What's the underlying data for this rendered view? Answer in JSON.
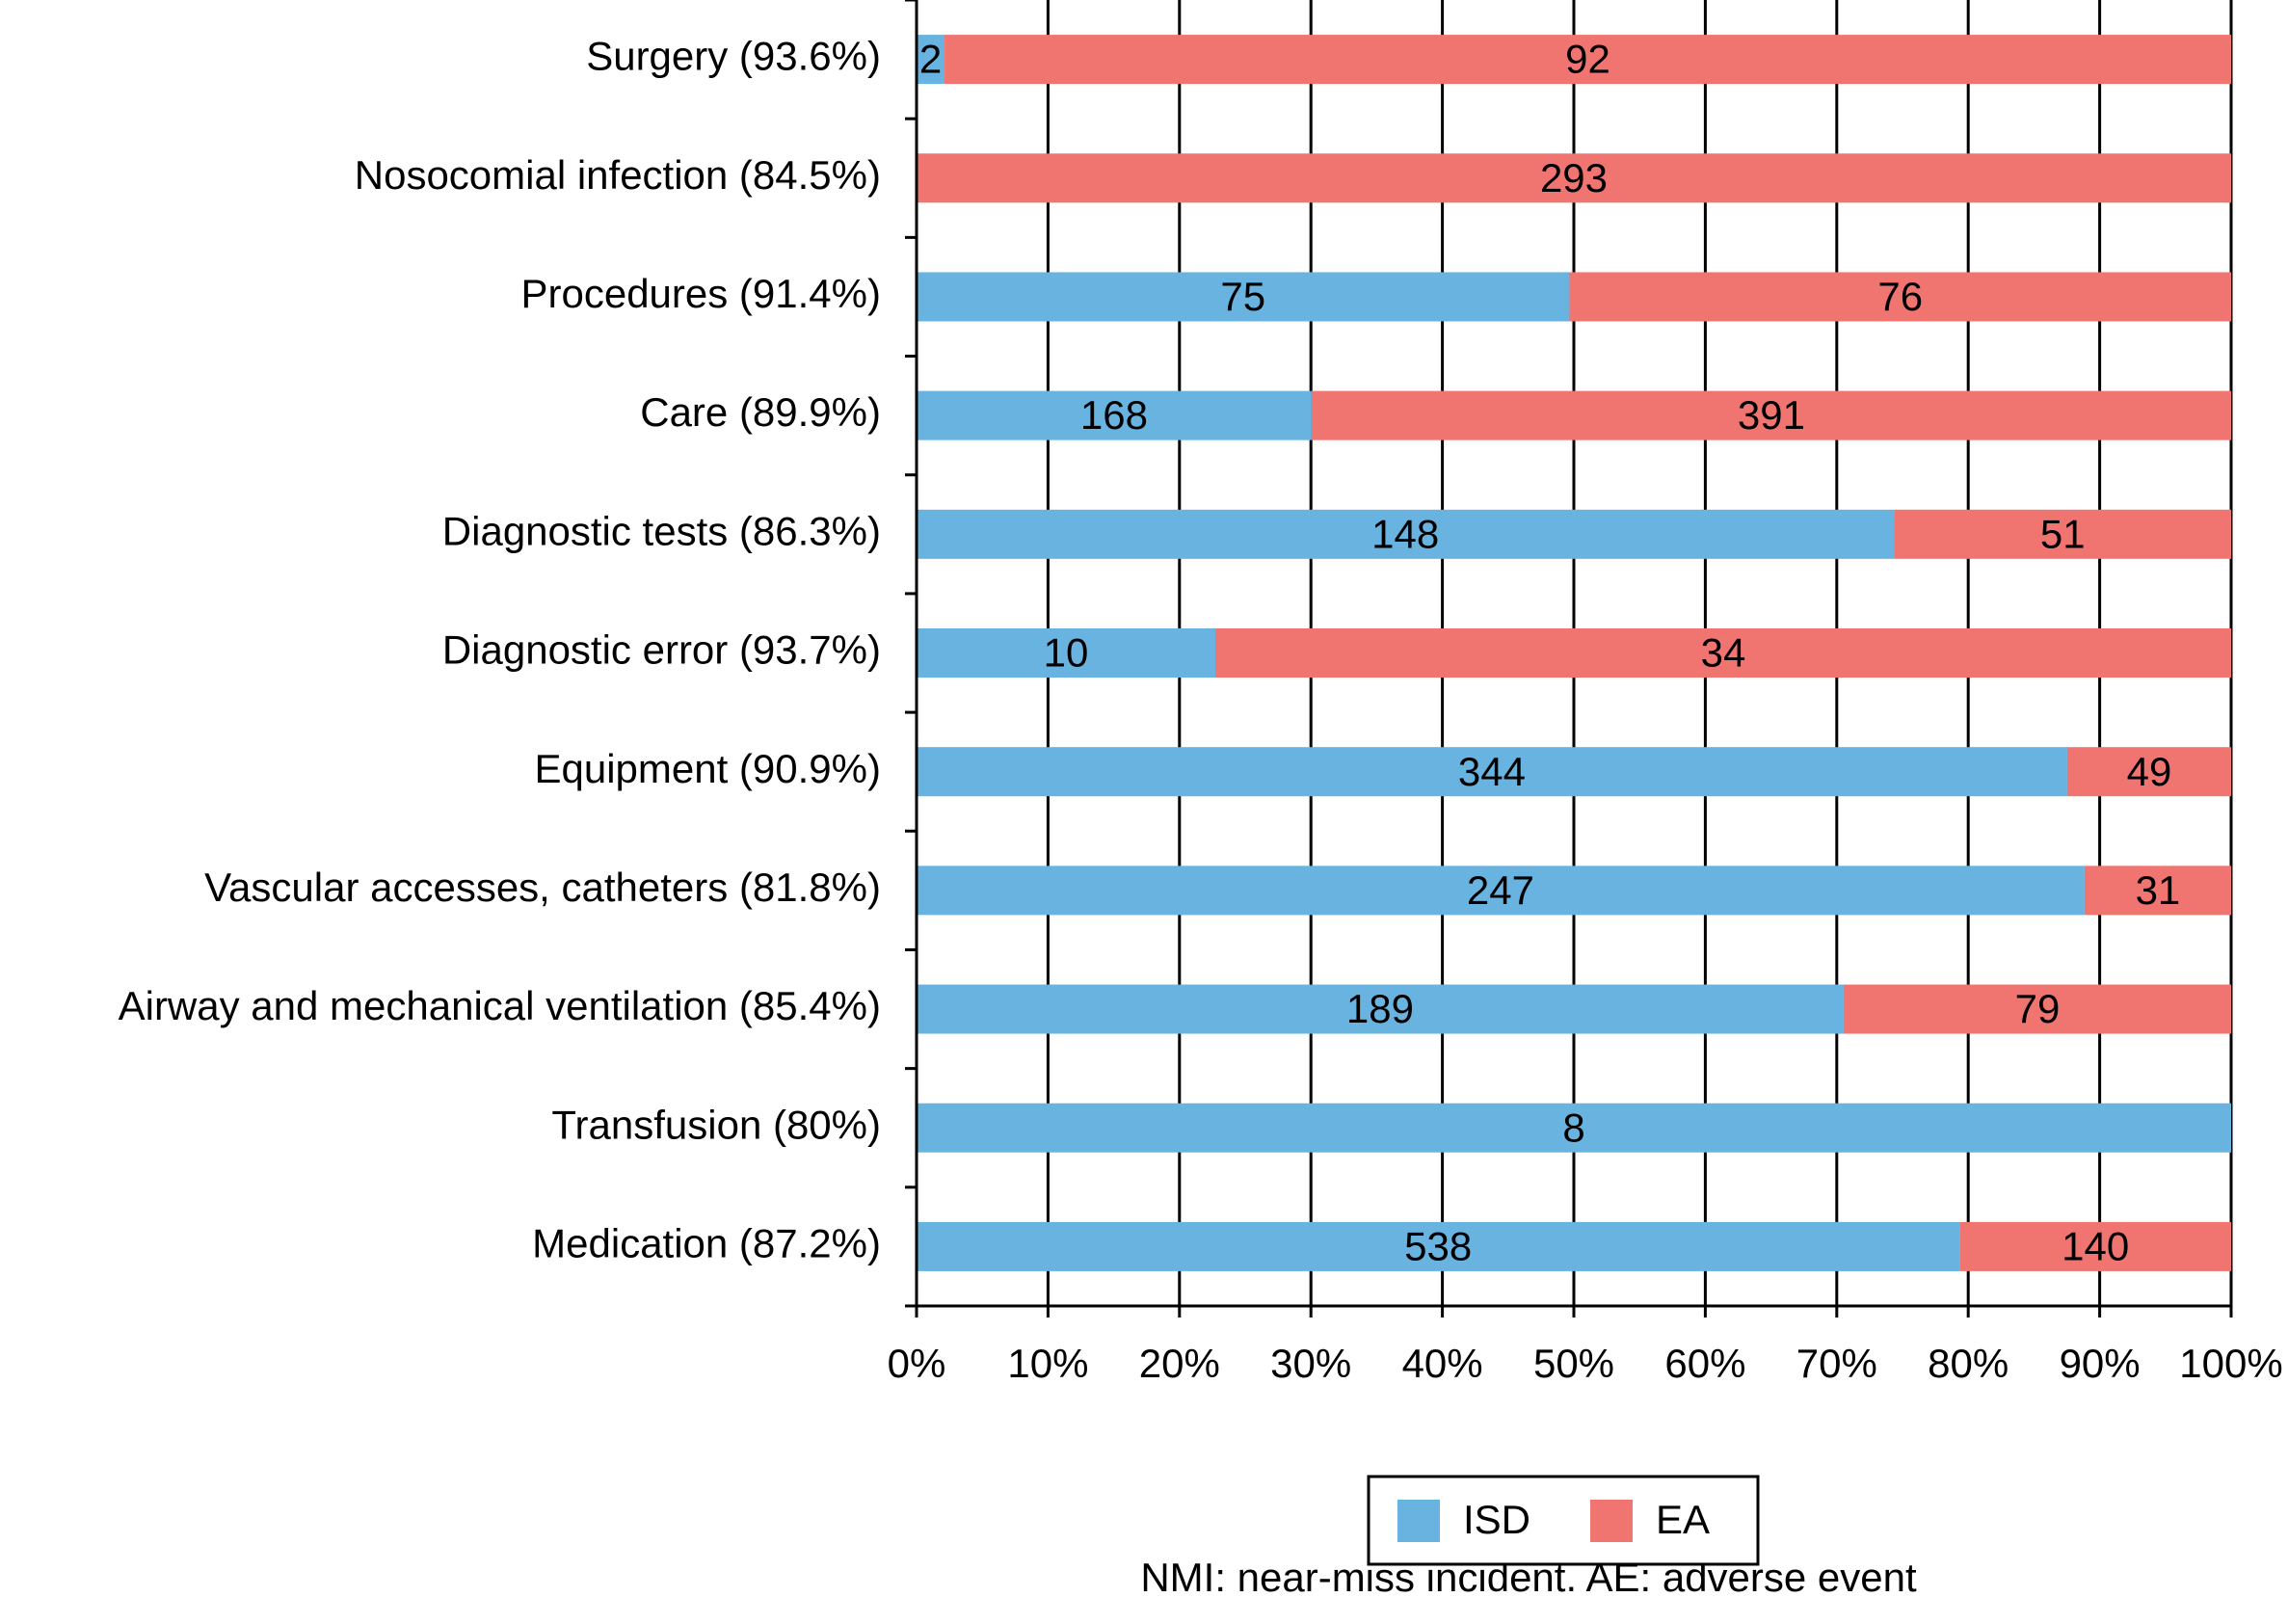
{
  "chart_data": {
    "type": "bar",
    "orientation": "horizontal",
    "stacking": "percent",
    "categories": [
      "Surgery (93.6%)",
      "Nosocomial infection (84.5%)",
      "Procedures (91.4%)",
      "Care (89.9%)",
      "Diagnostic tests (86.3%)",
      "Diagnostic error (93.7%)",
      "Equipment (90.9%)",
      "Vascular accesses, catheters (81.8%)",
      "Airway and mechanical ventilation (85.4%)",
      "Transfusion (80%)",
      "Medication (87.2%)"
    ],
    "series": [
      {
        "name": "ISD",
        "color": "#69b3e1",
        "values": [
          2,
          null,
          75,
          168,
          148,
          10,
          344,
          247,
          189,
          8,
          538
        ]
      },
      {
        "name": "EA",
        "color": "#f07570",
        "values": [
          92,
          293,
          76,
          391,
          51,
          34,
          49,
          31,
          79,
          null,
          140
        ]
      }
    ],
    "xlim": [
      0,
      100
    ],
    "xticks": [
      {
        "value": 0,
        "label": "0%"
      },
      {
        "value": 10,
        "label": "10%"
      },
      {
        "value": 20,
        "label": "20%"
      },
      {
        "value": 30,
        "label": "30%"
      },
      {
        "value": 40,
        "label": "40%"
      },
      {
        "value": 50,
        "label": "50%"
      },
      {
        "value": 60,
        "label": "60%"
      },
      {
        "value": 70,
        "label": "70%"
      },
      {
        "value": 80,
        "label": "80%"
      },
      {
        "value": 90,
        "label": "90%"
      },
      {
        "value": 100,
        "label": "100%"
      }
    ],
    "grid": true,
    "legend": "bottom",
    "note": "NMI: near-miss incident. AE: adverse event"
  }
}
